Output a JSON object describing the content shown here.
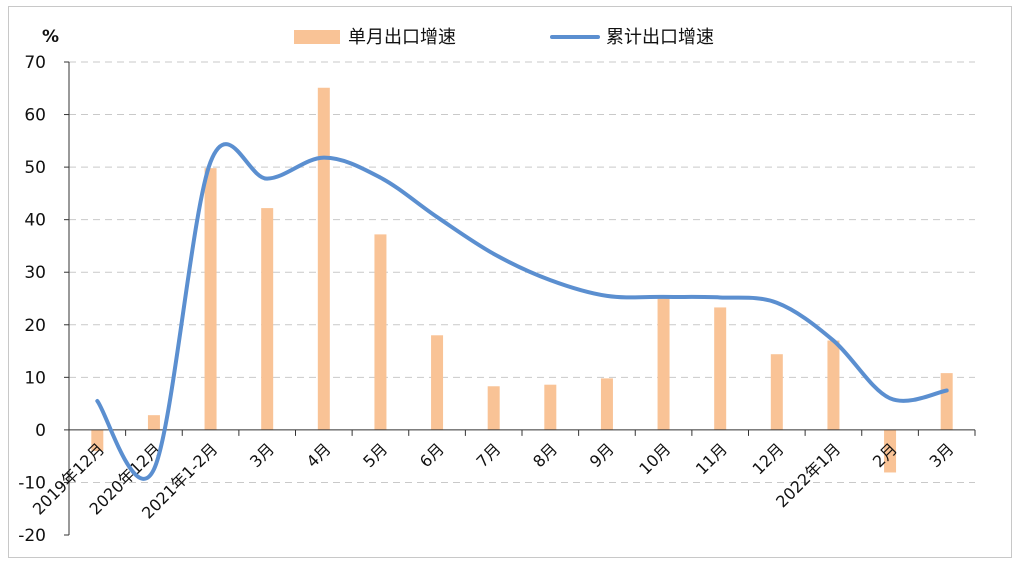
{
  "chart_data": {
    "type": "bar+line",
    "ylabel": "%",
    "ylim": [
      -20,
      70
    ],
    "yticks": [
      -20,
      -10,
      0,
      10,
      20,
      30,
      40,
      50,
      60,
      70
    ],
    "grid": "horizontal dashed",
    "legend_position": "top-center",
    "categories": [
      "2019年12月",
      "2020年12月",
      "2021年1-2月",
      "3月",
      "4月",
      "5月",
      "6月",
      "7月",
      "8月",
      "9月",
      "10月",
      "11月",
      "12月",
      "2022年1月",
      "2月",
      "3月"
    ],
    "series": [
      {
        "name": "单月出口增速",
        "type": "bar",
        "color": "#f9c396",
        "values": [
          -4.0,
          2.8,
          49.8,
          42.2,
          65.1,
          37.2,
          18.0,
          8.3,
          8.6,
          9.8,
          25.3,
          23.3,
          14.4,
          17.0,
          -8.1,
          10.8
        ]
      },
      {
        "name": "累计出口增速",
        "type": "line",
        "color": "#5b8fd0",
        "values": [
          5.5,
          -7.5,
          51.0,
          47.8,
          51.8,
          48.0,
          40.5,
          33.5,
          28.5,
          25.5,
          25.3,
          25.2,
          24.2,
          17.0,
          6.0,
          7.5
        ]
      }
    ]
  }
}
